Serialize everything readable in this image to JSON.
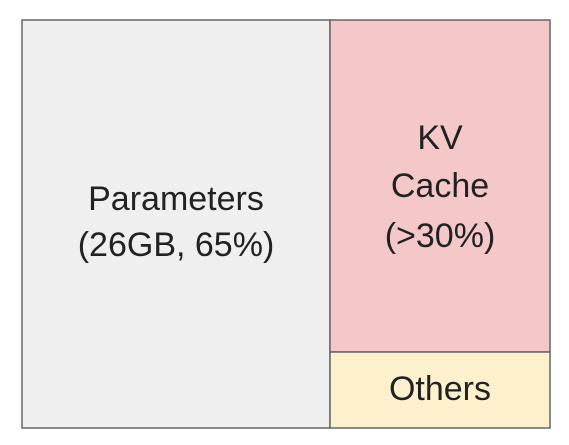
{
  "blocks": [
    {
      "lines": [
        "Parameters",
        "(26GB, 65%)"
      ]
    },
    {
      "lines": [
        "KV",
        "Cache",
        "(>30%)"
      ]
    },
    {
      "lines": [
        "Others"
      ]
    }
  ]
}
